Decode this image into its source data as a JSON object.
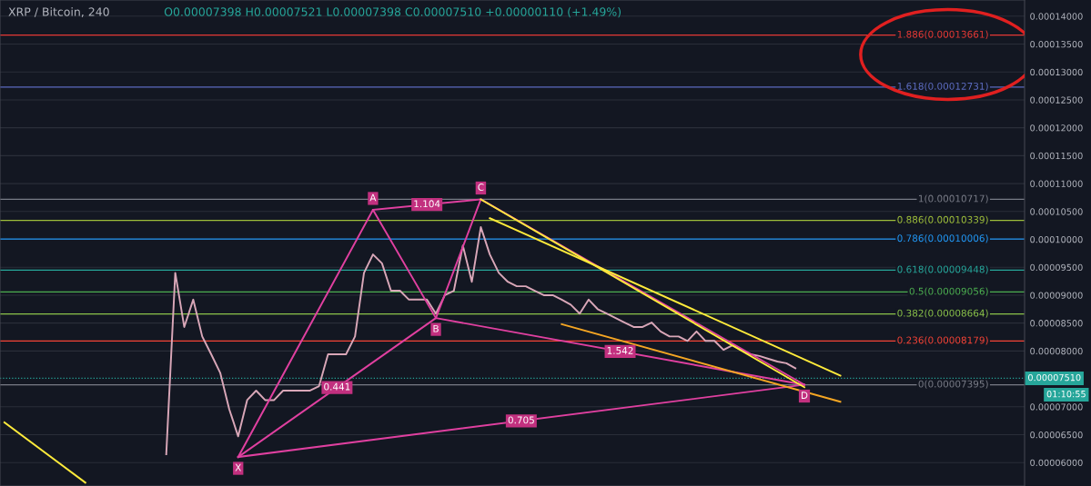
{
  "chart_data": {
    "type": "line",
    "title": "XRP / Bitcoin, 240",
    "annotations": [
      "O0.00007398 H0.00007521 L0.00007398 C0.00007510 +0.00000110 (+1.49%)",
      "01:10:55",
      "X",
      "A",
      "B",
      "C",
      "D",
      "1.104",
      "0.441",
      "1.542",
      "0.705"
    ],
    "categories": [
      null,
      null,
      null,
      null,
      null,
      null,
      null,
      null,
      null,
      null,
      null,
      null,
      null,
      null,
      null,
      null,
      null,
      null,
      null,
      null,
      null,
      null,
      null,
      null,
      null,
      null,
      null,
      null,
      null,
      null,
      null,
      null,
      null,
      null,
      null,
      null,
      null,
      null,
      null,
      null,
      null,
      null,
      null,
      null,
      null,
      null,
      null,
      null,
      null,
      null,
      null,
      null,
      null,
      null,
      null,
      null,
      null,
      null,
      null,
      null,
      null,
      null,
      null,
      null,
      null,
      null,
      null,
      null,
      null,
      null,
      null,
      null,
      null,
      null,
      null,
      null,
      null,
      null,
      null,
      null,
      null,
      null,
      null,
      null,
      null,
      null,
      null,
      null,
      null,
      null,
      null,
      null,
      null,
      null,
      null,
      null,
      null,
      null,
      null,
      null,
      null,
      null,
      null,
      null,
      null,
      null,
      null,
      null,
      null,
      null,
      null,
      null,
      null,
      null
    ],
    "ylim": [
      5.58e-05,
      0.0001429
    ],
    "tick_labels": "y",
    "grid": true,
    "yticks": [
      {
        "value": 6e-05,
        "label": "0.00006000"
      },
      {
        "value": 6.5e-05,
        "label": "0.00006500"
      },
      {
        "value": 7e-05,
        "label": "0.00007000"
      },
      {
        "value": 8e-05,
        "label": "0.00008000"
      },
      {
        "value": 8.5e-05,
        "label": "0.00008500"
      },
      {
        "value": 9e-05,
        "label": "0.00009000"
      },
      {
        "value": 9.5e-05,
        "label": "0.00009500"
      },
      {
        "value": 0.0001,
        "label": "0.00010000"
      },
      {
        "value": 0.000105,
        "label": "0.00010500"
      },
      {
        "value": 0.00011,
        "label": "0.00011000"
      },
      {
        "value": 0.000115,
        "label": "0.00011500"
      },
      {
        "value": 0.00012,
        "label": "0.00012000"
      },
      {
        "value": 0.000125,
        "label": "0.00012500"
      },
      {
        "value": 0.00013,
        "label": "0.00013000"
      },
      {
        "value": 0.000135,
        "label": "0.00013500"
      },
      {
        "value": 0.00014,
        "label": "0.00014000"
      }
    ],
    "series": [
      {
        "color": "#d9a7b8",
        "values": [
          null,
          null,
          null,
          null,
          null,
          null,
          null,
          null,
          null,
          null,
          null,
          null,
          null,
          null,
          null,
          null,
          null,
          null,
          6.15e-05,
          9.4e-05,
          8.43e-05,
          8.92e-05,
          8.26e-05,
          7.94e-05,
          7.61e-05,
          6.96e-05,
          6.47e-05,
          7.12e-05,
          7.29e-05,
          7.12e-05,
          7.12e-05,
          7.29e-05,
          7.29e-05,
          7.29e-05,
          7.29e-05,
          7.37e-05,
          7.94e-05,
          7.94e-05,
          7.94e-05,
          8.26e-05,
          9.4e-05,
          9.73e-05,
          9.57e-05,
          9.08e-05,
          9.08e-05,
          8.92e-05,
          8.92e-05,
          8.92e-05,
          8.67e-05,
          9e-05,
          9.08e-05,
          9.89e-05,
          9.24e-05,
          0.0001022,
          9.73e-05,
          9.4e-05,
          9.24e-05,
          9.16e-05,
          9.16e-05,
          9.08e-05,
          9e-05,
          9e-05,
          8.92e-05,
          8.83e-05,
          8.67e-05,
          8.92e-05,
          8.75e-05,
          8.67e-05,
          8.59e-05,
          8.51e-05,
          8.43e-05,
          8.43e-05,
          8.51e-05,
          8.35e-05,
          8.26e-05,
          8.26e-05,
          8.18e-05,
          8.35e-05,
          8.18e-05,
          8.18e-05,
          8.02e-05,
          8.1e-05,
          8.02e-05,
          7.94e-05,
          7.91e-05,
          7.86e-05,
          7.81e-05,
          7.78e-05,
          7.69e-05,
          null,
          null,
          null,
          null,
          null,
          null,
          null,
          null,
          null,
          null,
          null,
          null,
          null,
          null,
          null,
          null,
          null,
          null,
          null,
          null,
          null,
          null,
          null,
          null,
          null
        ]
      },
      {
        "color": "#e040a0",
        "values": [
          null,
          null,
          null,
          null,
          null,
          null,
          null,
          null,
          null,
          null,
          null,
          null,
          null,
          null,
          null,
          null,
          null,
          null,
          null,
          null,
          null,
          null,
          null,
          null,
          null,
          null,
          6.1e-05,
          null,
          null,
          null,
          null,
          null,
          null,
          null,
          null,
          null,
          null,
          null,
          null,
          null,
          null,
          0.0001053,
          null,
          null,
          null,
          null,
          null,
          null,
          8.59e-05,
          null,
          null,
          null,
          null,
          0.00010717,
          null,
          null,
          null,
          null,
          null,
          null,
          null,
          null,
          null,
          null,
          null,
          null,
          null,
          null,
          null,
          null,
          null,
          null,
          null,
          null,
          null,
          null,
          null,
          null,
          null,
          null,
          null,
          null,
          null,
          null,
          null,
          null,
          null,
          null,
          null,
          7.395e-05,
          null,
          null,
          null,
          null,
          null,
          null,
          null,
          null,
          null,
          null,
          null,
          null,
          null,
          null,
          null,
          null,
          null,
          null,
          null,
          null,
          null,
          null,
          null,
          null
        ]
      },
      {
        "color": "#e040a0",
        "values": [
          null,
          null,
          null,
          null,
          null,
          null,
          null,
          null,
          null,
          null,
          null,
          null,
          null,
          null,
          null,
          null,
          null,
          null,
          null,
          null,
          null,
          null,
          null,
          null,
          null,
          null,
          6.1e-05,
          null,
          null,
          null,
          null,
          null,
          null,
          null,
          null,
          null,
          null,
          null,
          null,
          null,
          null,
          null,
          null,
          null,
          null,
          null,
          null,
          null,
          8.59e-05,
          null,
          null,
          null,
          null,
          null,
          null,
          null,
          null,
          null,
          null,
          null,
          null,
          null,
          null,
          null,
          null,
          null,
          null,
          null,
          null,
          null,
          null,
          null,
          null,
          null,
          null,
          null,
          null,
          null,
          null,
          null,
          null,
          null,
          null,
          null,
          null,
          null,
          null,
          null,
          null,
          7.395e-05,
          null,
          null,
          null,
          null,
          null,
          null,
          null,
          null,
          null,
          null,
          null,
          null,
          null,
          null,
          null,
          null,
          null,
          null,
          null,
          null,
          null,
          null,
          null,
          null
        ]
      },
      {
        "color": "#e040a0",
        "values": [
          null,
          null,
          null,
          null,
          null,
          null,
          null,
          null,
          null,
          null,
          null,
          null,
          null,
          null,
          null,
          null,
          null,
          null,
          null,
          null,
          null,
          null,
          null,
          null,
          null,
          null,
          null,
          null,
          null,
          null,
          null,
          null,
          null,
          null,
          null,
          null,
          null,
          null,
          null,
          null,
          null,
          0.0001053,
          null,
          null,
          null,
          null,
          null,
          null,
          null,
          null,
          null,
          null,
          null,
          0.00010717,
          null,
          null,
          null,
          null,
          null,
          null,
          null,
          null,
          null,
          null,
          null,
          null,
          null,
          null,
          null,
          null,
          null,
          null,
          null,
          null,
          null,
          null,
          null,
          null,
          null,
          null,
          null,
          null,
          null,
          null,
          null,
          null,
          null,
          null,
          null,
          null,
          null,
          null,
          null,
          null,
          null,
          null,
          null,
          null,
          null,
          null,
          null,
          null,
          null,
          null,
          null,
          null,
          null,
          null,
          null,
          null,
          null,
          null,
          null,
          null
        ]
      },
      {
        "color": "#e040a0",
        "values": [
          null,
          null,
          null,
          null,
          null,
          null,
          null,
          null,
          null,
          null,
          null,
          null,
          null,
          null,
          null,
          null,
          null,
          null,
          null,
          null,
          null,
          null,
          null,
          null,
          null,
          null,
          6.1e-05,
          null,
          null,
          null,
          null,
          null,
          null,
          null,
          null,
          null,
          null,
          null,
          null,
          null,
          null,
          null,
          null,
          null,
          null,
          null,
          null,
          null,
          null,
          null,
          null,
          null,
          null,
          null,
          null,
          null,
          null,
          null,
          null,
          null,
          null,
          null,
          null,
          null,
          null,
          null,
          null,
          null,
          null,
          null,
          null,
          null,
          null,
          null,
          null,
          null,
          null,
          null,
          null,
          null,
          null,
          null,
          null,
          null,
          null,
          null,
          null,
          null,
          null,
          7.395e-05,
          null,
          null,
          null,
          null,
          null,
          null,
          null,
          null,
          null,
          null,
          null,
          null,
          null,
          null,
          null,
          null,
          null,
          null,
          null,
          null,
          null,
          null,
          null,
          null
        ]
      },
      {
        "color": "#ffeb3b",
        "values": [
          null,
          null,
          null,
          null,
          null,
          null,
          null,
          null,
          null,
          null,
          null,
          null,
          null,
          null,
          null,
          null,
          null,
          null,
          null,
          null,
          null,
          null,
          null,
          null,
          null,
          null,
          null,
          null,
          null,
          null,
          null,
          null,
          null,
          null,
          null,
          null,
          null,
          null,
          null,
          null,
          null,
          null,
          null,
          null,
          null,
          null,
          null,
          null,
          null,
          null,
          null,
          null,
          null,
          0.00010717,
          null,
          null,
          null,
          null,
          null,
          null,
          null,
          null,
          null,
          null,
          null,
          null,
          null,
          null,
          null,
          null,
          null,
          null,
          null,
          null,
          null,
          null,
          null,
          null,
          null,
          null,
          null,
          null,
          null,
          null,
          null,
          null,
          null,
          null,
          null,
          7.35e-05,
          null,
          null,
          null,
          null,
          null,
          null,
          null,
          null,
          null,
          null,
          null,
          null,
          null,
          null,
          null,
          null,
          null,
          null,
          null,
          null,
          null,
          null,
          null,
          null
        ]
      },
      {
        "color": "#ffeb3b",
        "values": [
          null,
          null,
          null,
          null,
          null,
          null,
          null,
          null,
          null,
          null,
          null,
          null,
          null,
          null,
          null,
          null,
          null,
          null,
          null,
          null,
          null,
          null,
          null,
          null,
          null,
          null,
          null,
          null,
          null,
          null,
          null,
          null,
          null,
          null,
          null,
          null,
          null,
          null,
          null,
          null,
          null,
          null,
          null,
          null,
          null,
          null,
          null,
          null,
          null,
          null,
          null,
          null,
          null,
          null,
          0.0001038,
          null,
          null,
          null,
          null,
          null,
          null,
          null,
          null,
          null,
          null,
          null,
          null,
          null,
          null,
          null,
          null,
          null,
          null,
          null,
          null,
          null,
          null,
          null,
          null,
          null,
          null,
          null,
          null,
          null,
          null,
          null,
          null,
          null,
          null,
          null,
          null,
          null,
          null,
          7.56e-05,
          null,
          null,
          null,
          null,
          null,
          null,
          null,
          null,
          null,
          null,
          null,
          null,
          null,
          null,
          null,
          null,
          null,
          null,
          null,
          null
        ]
      },
      {
        "color": "#f5a623",
        "values": [
          null,
          null,
          null,
          null,
          null,
          null,
          null,
          null,
          null,
          null,
          null,
          null,
          null,
          null,
          null,
          null,
          null,
          null,
          null,
          null,
          null,
          null,
          null,
          null,
          null,
          null,
          null,
          null,
          null,
          null,
          null,
          null,
          null,
          null,
          null,
          null,
          null,
          null,
          null,
          null,
          null,
          null,
          null,
          null,
          null,
          null,
          null,
          null,
          null,
          null,
          null,
          null,
          null,
          null,
          null,
          null,
          null,
          null,
          null,
          null,
          null,
          null,
          8.48e-05,
          null,
          null,
          null,
          null,
          null,
          null,
          null,
          null,
          null,
          null,
          null,
          null,
          null,
          null,
          null,
          null,
          null,
          null,
          null,
          null,
          null,
          null,
          null,
          null,
          null,
          null,
          null,
          null,
          null,
          null,
          7.09e-05,
          null,
          null,
          null,
          null,
          null,
          null,
          null,
          null,
          null,
          null,
          null,
          null,
          null,
          null,
          null,
          null,
          null,
          null,
          null,
          null
        ]
      },
      {
        "color": "#ffeb3b",
        "values": [
          6.72e-05,
          null,
          null,
          null,
          null,
          null,
          null,
          null,
          null,
          5.64e-05,
          null,
          null,
          null,
          null,
          null,
          null,
          null,
          null,
          null,
          null,
          null,
          null,
          null,
          null,
          null,
          null,
          null,
          null,
          null,
          null,
          null,
          null,
          null,
          null,
          null,
          null,
          null,
          null,
          null,
          null,
          null,
          null,
          null,
          null,
          null,
          null,
          null,
          null,
          null,
          null,
          null,
          null,
          null,
          null,
          null,
          null,
          null,
          null,
          null,
          null,
          null,
          null,
          null,
          null,
          null,
          null,
          null,
          null,
          null,
          null,
          null,
          null,
          null,
          null,
          null,
          null,
          null,
          null,
          null,
          null,
          null,
          null,
          null,
          null,
          null,
          null,
          null,
          null,
          null,
          null,
          null,
          null,
          null,
          null,
          null,
          null,
          null,
          null,
          null,
          null,
          null,
          null,
          null,
          null,
          null,
          null,
          null,
          null,
          null,
          null,
          null,
          null,
          null,
          null
        ]
      }
    ],
    "ref_lines": [
      {
        "axis": "y",
        "value": 0.00013661,
        "label": "1.886(0.00013661)",
        "color": "#e53935"
      },
      {
        "axis": "y",
        "value": 0.00012731,
        "label": "1.618(0.00012731)",
        "color": "#5c6bc0"
      },
      {
        "axis": "y",
        "value": 0.00010717,
        "label": "1(0.00010717)",
        "color": "#787b86"
      },
      {
        "axis": "y",
        "value": 0.00010339,
        "label": "0.886(0.00010339)",
        "color": "#9dbd3a"
      },
      {
        "axis": "y",
        "value": 0.00010006,
        "label": "0.786(0.00010006)",
        "color": "#2196f3"
      },
      {
        "axis": "y",
        "value": 9.448e-05,
        "label": "0.618(0.00009448)",
        "color": "#26a69a"
      },
      {
        "axis": "y",
        "value": 9.056e-05,
        "label": "0.5(0.00009056)",
        "color": "#4caf50"
      },
      {
        "axis": "y",
        "value": 8.664e-05,
        "label": "0.382(0.00008664)",
        "color": "#8bc34a"
      },
      {
        "axis": "y",
        "value": 8.179e-05,
        "label": "0.236(0.00008179)",
        "color": "#f44336"
      },
      {
        "axis": "y",
        "value": 7.395e-05,
        "label": "0(0.00007395)",
        "color": "#787b86"
      },
      {
        "axis": "y",
        "value": 7.51e-05,
        "label": "0.00007510",
        "color": "#26a69a",
        "line_style": "dotted"
      }
    ]
  }
}
